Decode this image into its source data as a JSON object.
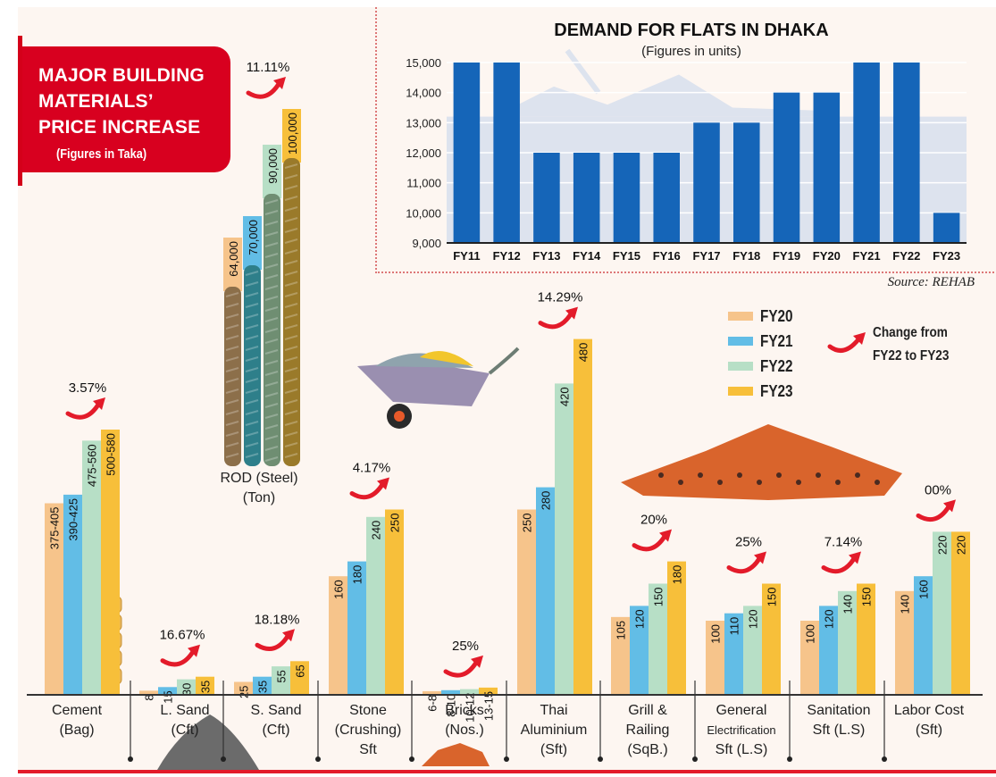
{
  "title": {
    "line1": "MAJOR BUILDING",
    "line2": "MATERIALS’",
    "line3": "PRICE INCREASE",
    "subtitle": "(Figures in Taka)"
  },
  "legend": {
    "items": [
      {
        "label": "FY20",
        "color": "#f6c48b"
      },
      {
        "label": "FY21",
        "color": "#62bde6"
      },
      {
        "label": "FY22",
        "color": "#b7dfc6"
      },
      {
        "label": "FY23",
        "color": "#f7bf3a"
      }
    ],
    "change_note": "Change from FY22 to FY23",
    "change_note_line1": "Change from",
    "change_note_line2": "FY22 to FY23"
  },
  "accent_color": "#e31b2a",
  "source": "Source: REHAB",
  "chart_data": [
    {
      "type": "bar",
      "title": "MAJOR BUILDING MATERIALS’ PRICE INCREASE",
      "subtitle": "(Figures in Taka)",
      "series_names": [
        "FY20",
        "FY21",
        "FY22",
        "FY23"
      ],
      "groups": [
        {
          "label_line1": "Cement",
          "label_line2": "(Bag)",
          "label_line3": "",
          "labels": [
            "375-405",
            "390-425",
            "475-560",
            "500-580"
          ],
          "values": [
            390,
            407.5,
            517.5,
            540
          ],
          "change": "3.57%"
        },
        {
          "label_line1": "ROD (Steel)",
          "label_line2": "(Ton)",
          "label_line3": "",
          "labels": [
            "64,000",
            "70,000",
            "90,000",
            "100,000"
          ],
          "values": [
            64000,
            70000,
            90000,
            100000
          ],
          "change": "11.11%"
        },
        {
          "label_line1": "L. Sand",
          "label_line2": "(Cft)",
          "label_line3": "",
          "labels": [
            "8",
            "15",
            "30",
            "35"
          ],
          "values": [
            8,
            15,
            30,
            35
          ],
          "change": "16.67%"
        },
        {
          "label_line1": "S. Sand",
          "label_line2": "(Cft)",
          "label_line3": "",
          "labels": [
            "25",
            "35",
            "55",
            "65"
          ],
          "values": [
            25,
            35,
            55,
            65
          ],
          "change": "18.18%"
        },
        {
          "label_line1": "Stone",
          "label_line2": "(Crushing)",
          "label_line3": "Sft",
          "labels": [
            "160",
            "180",
            "240",
            "250"
          ],
          "values": [
            160,
            180,
            240,
            250
          ],
          "change": "4.17%"
        },
        {
          "label_line1": "Bricks",
          "label_line2": "(Nos.)",
          "label_line3": "",
          "labels": [
            "6-8",
            "8-10",
            "10-12",
            "13-15"
          ],
          "values": [
            7,
            9,
            11,
            14
          ],
          "change": "25%"
        },
        {
          "label_line1": "Thai",
          "label_line2": "Aluminium",
          "label_line3": "(Sft)",
          "labels": [
            "250",
            "280",
            "420",
            "480"
          ],
          "values": [
            250,
            280,
            420,
            480
          ],
          "change": "14.29%"
        },
        {
          "label_line1": "Grill &",
          "label_line2": "Railing",
          "label_line3": "(SqB.)",
          "labels": [
            "105",
            "120",
            "150",
            "180"
          ],
          "values": [
            105,
            120,
            150,
            180
          ],
          "change": "20%"
        },
        {
          "label_line1": "General",
          "label_line2": "Electrification",
          "label_line3": "Sft (L.S)",
          "labels": [
            "100",
            "110",
            "120",
            "150"
          ],
          "values": [
            100,
            110,
            120,
            150
          ],
          "change": "25%"
        },
        {
          "label_line1": "Sanitation",
          "label_line2": "Sft (L.S)",
          "label_line3": "",
          "labels": [
            "100",
            "120",
            "140",
            "150"
          ],
          "values": [
            100,
            120,
            140,
            150
          ],
          "change": "7.14%"
        },
        {
          "label_line1": "Labor Cost",
          "label_line2": "(Sft)",
          "label_line3": "",
          "labels": [
            "140",
            "160",
            "220",
            "220"
          ],
          "values": [
            140,
            160,
            220,
            220
          ],
          "change": "00%"
        }
      ]
    },
    {
      "type": "bar",
      "title": "DEMAND FOR FLATS IN DHAKA",
      "subtitle": "(Figures in units)",
      "xlabel": "",
      "ylabel": "",
      "categories": [
        "FY11",
        "FY12",
        "FY13",
        "FY14",
        "FY15",
        "FY16",
        "FY17",
        "FY18",
        "FY19",
        "FY20",
        "FY21",
        "FY22",
        "FY23"
      ],
      "values": [
        15000,
        15000,
        12000,
        12000,
        12000,
        12000,
        13000,
        13000,
        14000,
        14000,
        15000,
        15000,
        10000
      ],
      "ylim": [
        9000,
        15000
      ],
      "yticks": [
        "9,000",
        "10,000",
        "11,000",
        "12,000",
        "13,000",
        "14,000",
        "15,000"
      ],
      "ytick_values": [
        9000,
        10000,
        11000,
        12000,
        13000,
        14000,
        15000
      ],
      "grid": true,
      "bar_color": "#1565b8",
      "source": "Source: REHAB"
    }
  ]
}
